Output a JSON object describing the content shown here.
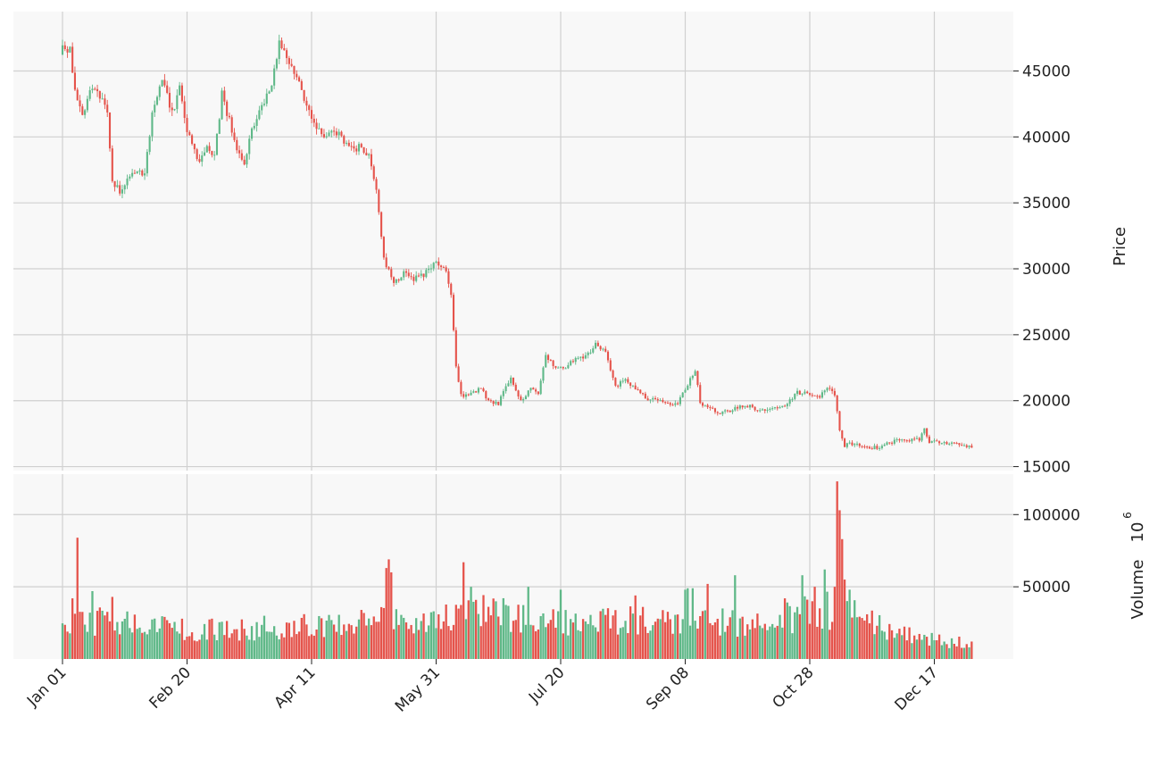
{
  "chart_data": {
    "type": "candlestick",
    "colors": {
      "up": "#5fb888",
      "down": "#e5534b",
      "panel_bg": "#f8f8f8",
      "grid": "#d0d0d0",
      "axis_text": "#222222"
    },
    "x_tick_labels": [
      "Jan 01",
      "Feb 20",
      "Apr 11",
      "May 31",
      "Jul 20",
      "Sep 08",
      "Oct 28",
      "Dec 17"
    ],
    "x_tick_index": [
      0,
      50,
      100,
      150,
      200,
      250,
      300,
      350
    ],
    "n_days": 366,
    "grid": true,
    "price_panel": {
      "ylabel": "Price",
      "y_ticks": [
        15000,
        20000,
        25000,
        30000,
        35000,
        40000,
        45000
      ],
      "y_tick_labels": [
        "15000",
        "20000",
        "25000",
        "30000",
        "35000",
        "40000",
        "45000"
      ],
      "ylim": [
        14700,
        49500
      ],
      "close_anchors": [
        [
          0,
          47200
        ],
        [
          3,
          46500
        ],
        [
          5,
          43500
        ],
        [
          8,
          41600
        ],
        [
          12,
          43800
        ],
        [
          18,
          42000
        ],
        [
          20,
          36500
        ],
        [
          24,
          35800
        ],
        [
          28,
          37500
        ],
        [
          33,
          37000
        ],
        [
          36,
          41800
        ],
        [
          38,
          43200
        ],
        [
          40,
          44500
        ],
        [
          44,
          41800
        ],
        [
          47,
          43600
        ],
        [
          50,
          40300
        ],
        [
          55,
          38200
        ],
        [
          58,
          39500
        ],
        [
          61,
          38400
        ],
        [
          64,
          43200
        ],
        [
          67,
          41200
        ],
        [
          70,
          39300
        ],
        [
          73,
          38200
        ],
        [
          76,
          40500
        ],
        [
          80,
          42400
        ],
        [
          84,
          44100
        ],
        [
          87,
          47200
        ],
        [
          90,
          46300
        ],
        [
          93,
          45000
        ],
        [
          97,
          42800
        ],
        [
          100,
          41200
        ],
        [
          105,
          40100
        ],
        [
          109,
          40600
        ],
        [
          113,
          39800
        ],
        [
          117,
          39000
        ],
        [
          120,
          39300
        ],
        [
          123,
          38600
        ],
        [
          126,
          36000
        ],
        [
          129,
          30800
        ],
        [
          133,
          28900
        ],
        [
          137,
          29600
        ],
        [
          141,
          29300
        ],
        [
          145,
          29600
        ],
        [
          150,
          30400
        ],
        [
          154,
          29800
        ],
        [
          156,
          28000
        ],
        [
          158,
          22500
        ],
        [
          160,
          20400
        ],
        [
          164,
          20600
        ],
        [
          168,
          20900
        ],
        [
          171,
          20000
        ],
        [
          175,
          19800
        ],
        [
          180,
          21700
        ],
        [
          184,
          20000
        ],
        [
          188,
          21000
        ],
        [
          191,
          20600
        ],
        [
          194,
          23300
        ],
        [
          198,
          22600
        ],
        [
          202,
          22400
        ],
        [
          206,
          23300
        ],
        [
          210,
          23400
        ],
        [
          214,
          24200
        ],
        [
          218,
          23900
        ],
        [
          222,
          21000
        ],
        [
          226,
          21600
        ],
        [
          230,
          21000
        ],
        [
          235,
          20100
        ],
        [
          240,
          20000
        ],
        [
          244,
          19800
        ],
        [
          247,
          19800
        ],
        [
          251,
          21200
        ],
        [
          254,
          22300
        ],
        [
          256,
          19800
        ],
        [
          260,
          19400
        ],
        [
          264,
          19000
        ],
        [
          268,
          19300
        ],
        [
          272,
          19600
        ],
        [
          276,
          19600
        ],
        [
          280,
          19200
        ],
        [
          285,
          19400
        ],
        [
          290,
          19500
        ],
        [
          295,
          20600
        ],
        [
          300,
          20500
        ],
        [
          304,
          20300
        ],
        [
          307,
          21000
        ],
        [
          310,
          20400
        ],
        [
          312,
          17800
        ],
        [
          314,
          16600
        ],
        [
          316,
          16700
        ],
        [
          320,
          16600
        ],
        [
          324,
          16400
        ],
        [
          328,
          16500
        ],
        [
          332,
          16800
        ],
        [
          336,
          17000
        ],
        [
          340,
          17000
        ],
        [
          344,
          17100
        ],
        [
          346,
          17800
        ],
        [
          348,
          16900
        ],
        [
          352,
          16800
        ],
        [
          356,
          16800
        ],
        [
          360,
          16700
        ],
        [
          365,
          16550
        ]
      ]
    },
    "volume_panel": {
      "ylabel": "Volume",
      "scale_label": "10",
      "scale_exp": "6",
      "y_ticks": [
        50000,
        100000
      ],
      "y_tick_labels": [
        "50000",
        "100000"
      ],
      "ylim": [
        0,
        128000
      ],
      "base_anchors": [
        [
          0,
          30000
        ],
        [
          50,
          22000
        ],
        [
          100,
          24000
        ],
        [
          125,
          28000
        ],
        [
          135,
          32000
        ],
        [
          150,
          25000
        ],
        [
          160,
          38000
        ],
        [
          200,
          28000
        ],
        [
          250,
          30000
        ],
        [
          280,
          24000
        ],
        [
          300,
          36000
        ],
        [
          315,
          36000
        ],
        [
          330,
          22000
        ],
        [
          350,
          14000
        ],
        [
          365,
          12000
        ]
      ],
      "spikes": [
        [
          6,
          84000
        ],
        [
          4,
          42000
        ],
        [
          12,
          47000
        ],
        [
          20,
          43000
        ],
        [
          130,
          63000
        ],
        [
          131,
          69000
        ],
        [
          132,
          60000
        ],
        [
          161,
          67000
        ],
        [
          164,
          50000
        ],
        [
          187,
          50000
        ],
        [
          200,
          48000
        ],
        [
          230,
          44000
        ],
        [
          250,
          48000
        ],
        [
          251,
          49000
        ],
        [
          253,
          49000
        ],
        [
          259,
          52000
        ],
        [
          270,
          58000
        ],
        [
          290,
          42000
        ],
        [
          297,
          58000
        ],
        [
          302,
          50000
        ],
        [
          306,
          62000
        ],
        [
          310,
          50000
        ],
        [
          311,
          123000
        ],
        [
          312,
          103000
        ],
        [
          313,
          83000
        ],
        [
          314,
          55000
        ],
        [
          316,
          48000
        ]
      ]
    }
  }
}
